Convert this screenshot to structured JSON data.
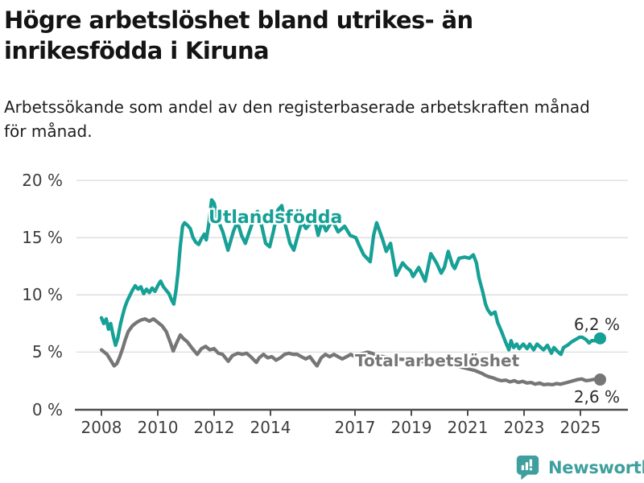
{
  "header": {
    "title_lines": [
      "Högre arbetslöshet bland utrikes- än",
      "inrikesfödda i Kiruna"
    ],
    "subtitle_lines": [
      "Arbetssökande som andel av den registerbaserade arbetskraften månad",
      "för månad."
    ]
  },
  "footer": {
    "brand": "Newsworthy",
    "brand_color": "#3f9f9f",
    "logo_icon": "bar-chart-speech-bubble-icon"
  },
  "chart_data": {
    "type": "line",
    "title": "Högre arbetslöshet bland utrikes- än inrikesfödda i Kiruna",
    "subtitle": "Arbetssökande som andel av den registerbaserade arbetskraften månad för månad.",
    "xlabel": "",
    "ylabel": "",
    "value_suffix": " %",
    "ylim": [
      0,
      20
    ],
    "xlim": [
      2007.1,
      2026.7
    ],
    "grid": true,
    "legend_position": "inline-labels",
    "y_ticks": {
      "values": [
        20,
        15,
        10,
        5,
        0
      ],
      "labels": [
        "20 %",
        "15 %",
        "10 %",
        "5 %",
        "0 %"
      ]
    },
    "x_ticks": {
      "values": [
        2008,
        2010,
        2012,
        2014,
        2017,
        2019,
        2021,
        2023,
        2025
      ],
      "labels": [
        "2008",
        "2010",
        "2012",
        "2014",
        "2017",
        "2019",
        "2021",
        "2023",
        "2025"
      ]
    },
    "series": [
      {
        "name": "Utlandsfödda",
        "color": "#16a096",
        "end_label": "6,2 %",
        "end_value": 6.2,
        "points": [
          [
            2008.0,
            8.0
          ],
          [
            2008.08,
            7.5
          ],
          [
            2008.17,
            7.9
          ],
          [
            2008.25,
            7.0
          ],
          [
            2008.33,
            7.5
          ],
          [
            2008.42,
            6.4
          ],
          [
            2008.5,
            5.6
          ],
          [
            2008.58,
            6.2
          ],
          [
            2008.67,
            7.4
          ],
          [
            2008.75,
            8.2
          ],
          [
            2008.83,
            8.9
          ],
          [
            2008.92,
            9.5
          ],
          [
            2009.0,
            9.9
          ],
          [
            2009.1,
            10.4
          ],
          [
            2009.2,
            10.8
          ],
          [
            2009.3,
            10.5
          ],
          [
            2009.4,
            10.7
          ],
          [
            2009.5,
            10.1
          ],
          [
            2009.6,
            10.5
          ],
          [
            2009.7,
            10.2
          ],
          [
            2009.8,
            10.6
          ],
          [
            2009.9,
            10.3
          ],
          [
            2010.0,
            10.8
          ],
          [
            2010.1,
            11.2
          ],
          [
            2010.2,
            10.7
          ],
          [
            2010.3,
            10.4
          ],
          [
            2010.4,
            10.1
          ],
          [
            2010.5,
            9.5
          ],
          [
            2010.57,
            9.2
          ],
          [
            2010.65,
            10.5
          ],
          [
            2010.72,
            12.0
          ],
          [
            2010.8,
            14.3
          ],
          [
            2010.88,
            16.0
          ],
          [
            2010.95,
            16.3
          ],
          [
            2011.05,
            16.1
          ],
          [
            2011.15,
            15.8
          ],
          [
            2011.25,
            15.0
          ],
          [
            2011.35,
            14.6
          ],
          [
            2011.45,
            14.4
          ],
          [
            2011.55,
            14.9
          ],
          [
            2011.65,
            15.3
          ],
          [
            2011.72,
            14.8
          ],
          [
            2011.8,
            16.0
          ],
          [
            2011.91,
            18.3
          ],
          [
            2012.0,
            18.0
          ],
          [
            2012.11,
            16.7
          ],
          [
            2012.31,
            15.5
          ],
          [
            2012.49,
            13.9
          ],
          [
            2012.69,
            15.6
          ],
          [
            2012.83,
            16.4
          ],
          [
            2012.97,
            15.2
          ],
          [
            2013.11,
            14.5
          ],
          [
            2013.26,
            15.6
          ],
          [
            2013.4,
            16.6
          ],
          [
            2013.54,
            17.3
          ],
          [
            2013.69,
            16.0
          ],
          [
            2013.83,
            14.5
          ],
          [
            2013.97,
            14.2
          ],
          [
            2014.11,
            15.6
          ],
          [
            2014.26,
            17.4
          ],
          [
            2014.4,
            17.8
          ],
          [
            2014.54,
            16.0
          ],
          [
            2014.69,
            14.5
          ],
          [
            2014.83,
            13.9
          ],
          [
            2014.97,
            15.2
          ],
          [
            2015.11,
            16.4
          ],
          [
            2015.26,
            15.8
          ],
          [
            2015.4,
            16.2
          ],
          [
            2015.54,
            16.9
          ],
          [
            2015.69,
            15.2
          ],
          [
            2015.83,
            16.4
          ],
          [
            2015.97,
            15.6
          ],
          [
            2016.2,
            16.5
          ],
          [
            2016.4,
            15.5
          ],
          [
            2016.63,
            16.0
          ],
          [
            2016.83,
            15.2
          ],
          [
            2017.03,
            15.0
          ],
          [
            2017.17,
            14.2
          ],
          [
            2017.31,
            13.5
          ],
          [
            2017.54,
            12.9
          ],
          [
            2017.66,
            15.2
          ],
          [
            2017.77,
            16.3
          ],
          [
            2017.97,
            14.9
          ],
          [
            2018.11,
            13.8
          ],
          [
            2018.26,
            14.5
          ],
          [
            2018.46,
            11.7
          ],
          [
            2018.69,
            12.8
          ],
          [
            2018.83,
            12.4
          ],
          [
            2018.97,
            12.1
          ],
          [
            2019.06,
            11.6
          ],
          [
            2019.26,
            12.4
          ],
          [
            2019.49,
            11.2
          ],
          [
            2019.69,
            13.6
          ],
          [
            2019.89,
            12.8
          ],
          [
            2020.06,
            11.9
          ],
          [
            2020.17,
            12.4
          ],
          [
            2020.31,
            13.8
          ],
          [
            2020.46,
            12.6
          ],
          [
            2020.54,
            12.3
          ],
          [
            2020.69,
            13.2
          ],
          [
            2020.89,
            13.3
          ],
          [
            2021.06,
            13.2
          ],
          [
            2021.2,
            13.5
          ],
          [
            2021.31,
            12.8
          ],
          [
            2021.4,
            11.5
          ],
          [
            2021.54,
            10.2
          ],
          [
            2021.63,
            9.2
          ],
          [
            2021.71,
            8.7
          ],
          [
            2021.83,
            8.3
          ],
          [
            2021.97,
            8.5
          ],
          [
            2022.06,
            7.6
          ],
          [
            2022.2,
            6.8
          ],
          [
            2022.34,
            5.9
          ],
          [
            2022.46,
            5.2
          ],
          [
            2022.54,
            6.0
          ],
          [
            2022.63,
            5.4
          ],
          [
            2022.74,
            5.7
          ],
          [
            2022.83,
            5.3
          ],
          [
            2022.97,
            5.7
          ],
          [
            2023.11,
            5.3
          ],
          [
            2023.2,
            5.7
          ],
          [
            2023.34,
            5.2
          ],
          [
            2023.46,
            5.7
          ],
          [
            2023.6,
            5.4
          ],
          [
            2023.69,
            5.2
          ],
          [
            2023.83,
            5.6
          ],
          [
            2023.97,
            4.9
          ],
          [
            2024.06,
            5.4
          ],
          [
            2024.17,
            5.1
          ],
          [
            2024.31,
            4.8
          ],
          [
            2024.4,
            5.4
          ],
          [
            2024.54,
            5.6
          ],
          [
            2024.69,
            5.9
          ],
          [
            2024.83,
            6.1
          ],
          [
            2024.97,
            6.3
          ],
          [
            2025.06,
            6.3
          ],
          [
            2025.2,
            6.1
          ],
          [
            2025.31,
            5.8
          ],
          [
            2025.4,
            6.0
          ],
          [
            2025.54,
            6.0
          ],
          [
            2025.7,
            6.2
          ]
        ]
      },
      {
        "name": "Total arbetslöshet",
        "color": "#767676",
        "end_label": "2,6 %",
        "end_value": 2.6,
        "points": [
          [
            2008.0,
            5.2
          ],
          [
            2008.1,
            5.0
          ],
          [
            2008.2,
            4.8
          ],
          [
            2008.3,
            4.4
          ],
          [
            2008.45,
            3.8
          ],
          [
            2008.55,
            4.0
          ],
          [
            2008.65,
            4.6
          ],
          [
            2008.75,
            5.3
          ],
          [
            2008.85,
            6.1
          ],
          [
            2008.95,
            6.8
          ],
          [
            2009.1,
            7.3
          ],
          [
            2009.25,
            7.6
          ],
          [
            2009.4,
            7.8
          ],
          [
            2009.55,
            7.9
          ],
          [
            2009.7,
            7.7
          ],
          [
            2009.85,
            7.9
          ],
          [
            2010.0,
            7.6
          ],
          [
            2010.15,
            7.3
          ],
          [
            2010.3,
            6.8
          ],
          [
            2010.45,
            5.8
          ],
          [
            2010.55,
            5.1
          ],
          [
            2010.65,
            5.7
          ],
          [
            2010.8,
            6.5
          ],
          [
            2010.9,
            6.2
          ],
          [
            2011.05,
            5.9
          ],
          [
            2011.2,
            5.4
          ],
          [
            2011.4,
            4.8
          ],
          [
            2011.55,
            5.3
          ],
          [
            2011.7,
            5.5
          ],
          [
            2011.85,
            5.2
          ],
          [
            2012.0,
            5.3
          ],
          [
            2012.15,
            4.9
          ],
          [
            2012.3,
            4.8
          ],
          [
            2012.5,
            4.2
          ],
          [
            2012.65,
            4.7
          ],
          [
            2012.85,
            4.9
          ],
          [
            2013.0,
            4.8
          ],
          [
            2013.15,
            4.9
          ],
          [
            2013.3,
            4.6
          ],
          [
            2013.5,
            4.1
          ],
          [
            2013.6,
            4.5
          ],
          [
            2013.75,
            4.8
          ],
          [
            2013.9,
            4.5
          ],
          [
            2014.05,
            4.6
          ],
          [
            2014.2,
            4.3
          ],
          [
            2014.35,
            4.5
          ],
          [
            2014.5,
            4.8
          ],
          [
            2014.65,
            4.9
          ],
          [
            2014.8,
            4.8
          ],
          [
            2014.95,
            4.8
          ],
          [
            2015.1,
            4.6
          ],
          [
            2015.25,
            4.4
          ],
          [
            2015.4,
            4.6
          ],
          [
            2015.55,
            4.1
          ],
          [
            2015.65,
            3.8
          ],
          [
            2015.8,
            4.5
          ],
          [
            2015.95,
            4.8
          ],
          [
            2016.1,
            4.6
          ],
          [
            2016.25,
            4.8
          ],
          [
            2016.4,
            4.6
          ],
          [
            2016.55,
            4.4
          ],
          [
            2016.7,
            4.6
          ],
          [
            2016.85,
            4.8
          ],
          [
            2017.0,
            4.6
          ],
          [
            2017.15,
            4.8
          ],
          [
            2017.3,
            4.9
          ],
          [
            2017.45,
            5.0
          ],
          [
            2017.6,
            4.9
          ],
          [
            2017.8,
            4.7
          ],
          [
            2018.0,
            4.6
          ],
          [
            2018.25,
            4.5
          ],
          [
            2018.5,
            4.4
          ],
          [
            2018.75,
            4.35
          ],
          [
            2019.0,
            4.3
          ],
          [
            2019.25,
            4.2
          ],
          [
            2019.5,
            4.15
          ],
          [
            2019.75,
            4.1
          ],
          [
            2020.0,
            4.05
          ],
          [
            2020.25,
            4.0
          ],
          [
            2020.5,
            3.9
          ],
          [
            2020.75,
            3.7
          ],
          [
            2021.0,
            3.55
          ],
          [
            2021.25,
            3.4
          ],
          [
            2021.5,
            3.15
          ],
          [
            2021.6,
            3.0
          ],
          [
            2021.75,
            2.85
          ],
          [
            2021.9,
            2.75
          ],
          [
            2022.05,
            2.6
          ],
          [
            2022.2,
            2.5
          ],
          [
            2022.35,
            2.55
          ],
          [
            2022.5,
            2.4
          ],
          [
            2022.65,
            2.5
          ],
          [
            2022.8,
            2.35
          ],
          [
            2022.95,
            2.45
          ],
          [
            2023.1,
            2.3
          ],
          [
            2023.25,
            2.35
          ],
          [
            2023.4,
            2.2
          ],
          [
            2023.55,
            2.3
          ],
          [
            2023.7,
            2.15
          ],
          [
            2023.85,
            2.2
          ],
          [
            2024.0,
            2.15
          ],
          [
            2024.15,
            2.25
          ],
          [
            2024.3,
            2.2
          ],
          [
            2024.45,
            2.3
          ],
          [
            2024.6,
            2.4
          ],
          [
            2024.75,
            2.5
          ],
          [
            2024.9,
            2.6
          ],
          [
            2025.05,
            2.65
          ],
          [
            2025.2,
            2.5
          ],
          [
            2025.35,
            2.55
          ],
          [
            2025.55,
            2.65
          ],
          [
            2025.7,
            2.6
          ]
        ]
      }
    ]
  }
}
